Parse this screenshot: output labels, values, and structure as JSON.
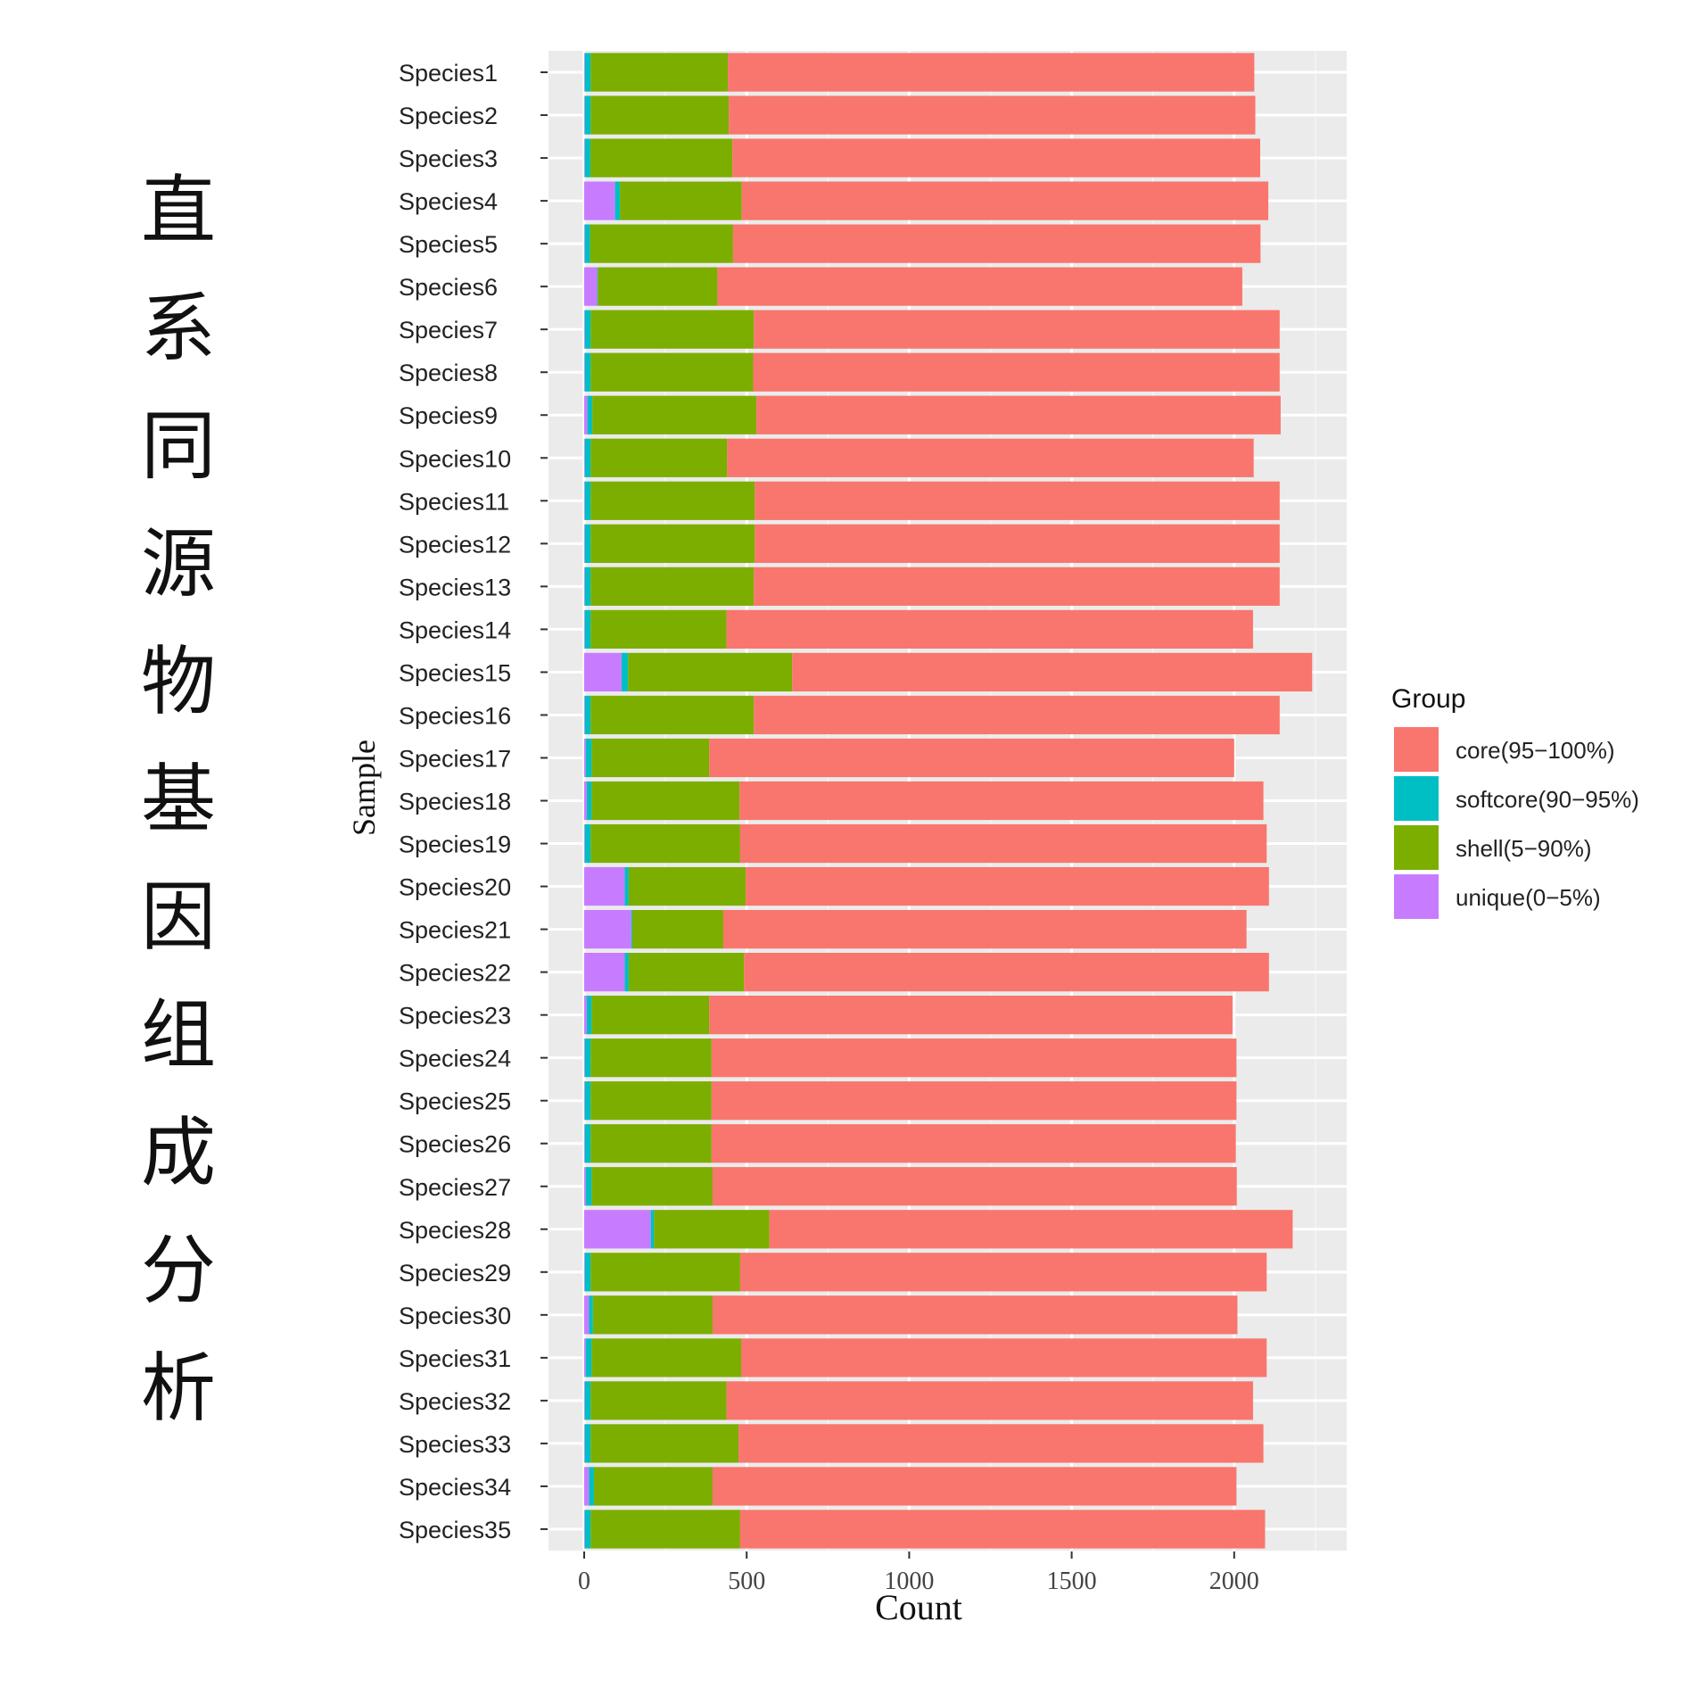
{
  "side_title": "直系同源物基因组成分析",
  "chart_data": {
    "type": "bar",
    "orientation": "horizontal",
    "stacked": true,
    "xlabel": "Count",
    "ylabel": "Sample",
    "xlim": [
      -110,
      2350
    ],
    "xticks": [
      0,
      500,
      1000,
      1500,
      2000
    ],
    "grid": true,
    "legend": {
      "title": "Group",
      "position": "right",
      "entries": [
        "core(95−100%)",
        "softcore(90−95%)",
        "shell(5−90%)",
        "unique(0−5%)"
      ]
    },
    "categories": [
      "Species1",
      "Species2",
      "Species3",
      "Species4",
      "Species5",
      "Species6",
      "Species7",
      "Species8",
      "Species9",
      "Species10",
      "Species11",
      "Species12",
      "Species13",
      "Species14",
      "Species15",
      "Species16",
      "Species17",
      "Species18",
      "Species19",
      "Species20",
      "Species21",
      "Species22",
      "Species23",
      "Species24",
      "Species25",
      "Species26",
      "Species27",
      "Species28",
      "Species29",
      "Species30",
      "Species31",
      "Species32",
      "Species33",
      "Species34",
      "Species35"
    ],
    "series": [
      {
        "name": "unique(0−5%)",
        "color": "#C77CFF",
        "values": [
          2,
          2,
          2,
          95,
          2,
          40,
          2,
          2,
          10,
          2,
          2,
          2,
          2,
          2,
          115,
          2,
          5,
          8,
          2,
          125,
          145,
          125,
          8,
          2,
          2,
          2,
          5,
          205,
          2,
          15,
          5,
          2,
          2,
          15,
          2
        ]
      },
      {
        "name": "softcore(90−95%)",
        "color": "#00BFC4",
        "values": [
          18,
          18,
          17,
          15,
          16,
          2,
          18,
          18,
          15,
          18,
          18,
          18,
          18,
          18,
          20,
          18,
          18,
          15,
          18,
          12,
          3,
          12,
          15,
          18,
          18,
          18,
          18,
          10,
          18,
          12,
          18,
          18,
          18,
          15,
          18
        ]
      },
      {
        "name": "shell(5−90%)",
        "color": "#7CAE00",
        "values": [
          422,
          425,
          437,
          375,
          440,
          368,
          502,
          500,
          505,
          420,
          505,
          505,
          502,
          418,
          505,
          502,
          362,
          455,
          460,
          360,
          280,
          355,
          362,
          372,
          372,
          372,
          372,
          355,
          460,
          368,
          460,
          418,
          455,
          365,
          460
        ]
      },
      {
        "name": "core(95−100%)",
        "color": "#F8766D",
        "values": [
          1620,
          1620,
          1624,
          1620,
          1623,
          1615,
          1618,
          1620,
          1613,
          1620,
          1615,
          1615,
          1618,
          1620,
          1600,
          1618,
          1615,
          1612,
          1620,
          1610,
          1610,
          1615,
          1610,
          1615,
          1615,
          1613,
          1613,
          1610,
          1620,
          1615,
          1617,
          1620,
          1615,
          1612,
          1615
        ]
      }
    ]
  }
}
